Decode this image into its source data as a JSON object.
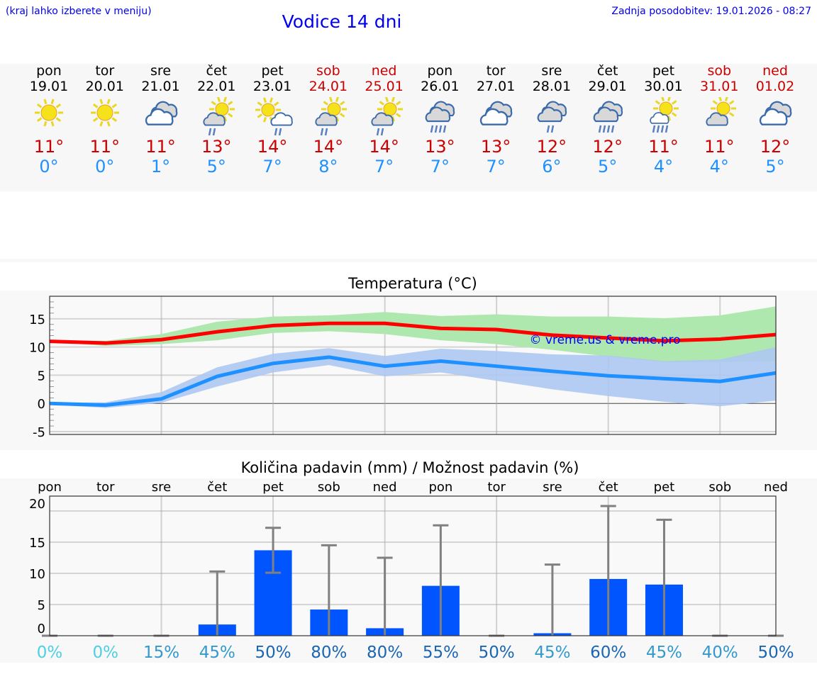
{
  "header": {
    "location_hint": "(kraj lahko izberete v meniju)",
    "title": "Vodice 14 dni",
    "updated": "Zadnja posodobitev: 19.01.2026 - 08:27"
  },
  "days": [
    {
      "name": "pon",
      "date": "19.01",
      "weekend": false,
      "icon": "sun-icon",
      "max": "11°",
      "min": "0°"
    },
    {
      "name": "tor",
      "date": "20.01",
      "weekend": false,
      "icon": "sun-icon",
      "max": "11°",
      "min": "0°"
    },
    {
      "name": "sre",
      "date": "21.01",
      "weekend": false,
      "icon": "cloudy-icon",
      "max": "11°",
      "min": "1°"
    },
    {
      "name": "čet",
      "date": "22.01",
      "weekend": false,
      "icon": "sun-cloud-rain-icon",
      "max": "13°",
      "min": "5°"
    },
    {
      "name": "pet",
      "date": "23.01",
      "weekend": false,
      "icon": "sun-cloud-light-rain-icon",
      "max": "14°",
      "min": "7°"
    },
    {
      "name": "sob",
      "date": "24.01",
      "weekend": true,
      "icon": "sun-cloud-rain-icon",
      "max": "14°",
      "min": "8°"
    },
    {
      "name": "ned",
      "date": "25.01",
      "weekend": true,
      "icon": "sun-cloud-rain-icon",
      "max": "14°",
      "min": "7°"
    },
    {
      "name": "pon",
      "date": "26.01",
      "weekend": false,
      "icon": "cloud-heavy-rain-icon",
      "max": "13°",
      "min": "7°"
    },
    {
      "name": "tor",
      "date": "27.01",
      "weekend": false,
      "icon": "cloudy-icon",
      "max": "13°",
      "min": "7°"
    },
    {
      "name": "sre",
      "date": "28.01",
      "weekend": false,
      "icon": "cloud-rain-icon",
      "max": "12°",
      "min": "6°"
    },
    {
      "name": "čet",
      "date": "29.01",
      "weekend": false,
      "icon": "cloud-heavy-rain-icon",
      "max": "12°",
      "min": "5°"
    },
    {
      "name": "pet",
      "date": "30.01",
      "weekend": false,
      "icon": "sun-heavy-rain-icon",
      "max": "11°",
      "min": "4°"
    },
    {
      "name": "sob",
      "date": "31.01",
      "weekend": true,
      "icon": "sun-cloud-icon",
      "max": "11°",
      "min": "4°"
    },
    {
      "name": "ned",
      "date": "01.02",
      "weekend": true,
      "icon": "cloudy-icon",
      "max": "12°",
      "min": "5°"
    }
  ],
  "colors": {
    "weekday": "#000000",
    "weekend": "#cc0000",
    "max": "#ff0000",
    "min": "#1e90ff",
    "max_band": "#aee8ae",
    "min_band": "#aec8f2",
    "bar": "#0055ff",
    "err": "#808080"
  },
  "chart_data": [
    {
      "type": "line",
      "title": "Temperatura (°C)",
      "ylim": [
        -5.5,
        19
      ],
      "yticks": [
        -5,
        0,
        5,
        10,
        15
      ],
      "grid": true,
      "x": [
        0,
        1,
        2,
        3,
        4,
        5,
        6,
        7,
        8,
        9,
        10,
        11,
        12,
        13
      ],
      "series": [
        {
          "name": "max",
          "values": [
            11,
            10.7,
            11.3,
            12.7,
            13.8,
            14.2,
            14.2,
            13.3,
            13.1,
            12.1,
            11.6,
            11.1,
            11.4,
            12.2
          ],
          "band_low": [
            10.9,
            10.2,
            10.5,
            11.2,
            12.5,
            12.8,
            12.3,
            11.2,
            10.5,
            9.5,
            8.3,
            7.3,
            7.3,
            7.5
          ],
          "band_high": [
            11.1,
            11.1,
            12.3,
            14.5,
            15.4,
            15.6,
            16.2,
            15.5,
            15.8,
            15.4,
            15.4,
            15.1,
            15.6,
            17.2
          ]
        },
        {
          "name": "min",
          "values": [
            0,
            -0.3,
            0.8,
            4.8,
            7.1,
            8.2,
            6.6,
            7.5,
            6.6,
            5.7,
            4.9,
            4.4,
            3.9,
            5.4
          ],
          "band_low": [
            -0.2,
            -0.8,
            0.1,
            3.0,
            5.5,
            6.8,
            4.8,
            5.5,
            4.0,
            2.5,
            1.3,
            0.3,
            -0.5,
            0.5
          ],
          "band_high": [
            0.1,
            0.2,
            2.0,
            6.4,
            8.8,
            9.8,
            8.4,
            9.7,
            9.3,
            8.7,
            8.5,
            7.5,
            7.8,
            10.0
          ]
        }
      ],
      "watermark": "© vreme.us & vreme.pro"
    },
    {
      "type": "bar",
      "title": "Količina padavin (mm) / Možnost padavin (%)",
      "ylim": [
        0,
        21
      ],
      "yticks": [
        0,
        5,
        10,
        15,
        20
      ],
      "grid": true,
      "categories": [
        "pon",
        "tor",
        "sre",
        "čet",
        "pet",
        "sob",
        "ned",
        "pon",
        "tor",
        "sre",
        "čet",
        "pet",
        "sob",
        "ned"
      ],
      "values": [
        0,
        0,
        0,
        1.8,
        13.7,
        4.2,
        1.2,
        8.0,
        0,
        0.4,
        9.1,
        8.2,
        0,
        0
      ],
      "err_low": [
        0,
        0,
        0,
        0,
        10.1,
        0,
        0,
        0,
        0,
        0,
        0,
        0,
        0,
        0
      ],
      "err_high": [
        0,
        0,
        0,
        10.3,
        17.3,
        14.5,
        12.5,
        17.7,
        0,
        11.4,
        20.8,
        18.6,
        0,
        0
      ],
      "probability": [
        "0%",
        "0%",
        "15%",
        "45%",
        "50%",
        "80%",
        "80%",
        "55%",
        "50%",
        "45%",
        "60%",
        "45%",
        "40%",
        "50%"
      ],
      "probability_colors": [
        "#4dd0e1",
        "#4dd0e1",
        "#3399cc",
        "#3399cc",
        "#1a66b3",
        "#1a66b3",
        "#1a66b3",
        "#1a66b3",
        "#1a66b3",
        "#3399cc",
        "#1a66b3",
        "#3399cc",
        "#3399cc",
        "#1a66b3"
      ]
    }
  ]
}
